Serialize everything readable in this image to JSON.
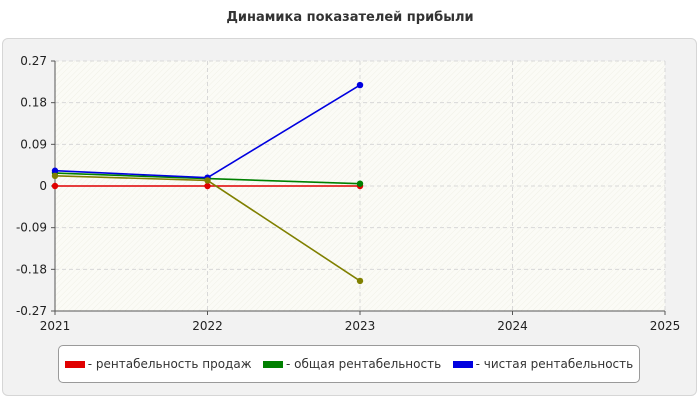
{
  "chart_data": {
    "type": "line",
    "title": "Динамика показателей прибыли",
    "x_ticks": [
      "2021",
      "2022",
      "2023",
      "2024",
      "2025"
    ],
    "xlim": [
      2021,
      2025
    ],
    "y_ticks": [
      "0.27",
      "0.18",
      "0.09",
      "0",
      "-0.09",
      "-0.18",
      "-0.27"
    ],
    "ylim": [
      -0.27,
      0.27
    ],
    "grid": true,
    "legend_position": "bottom",
    "series": [
      {
        "name": "- рентабельность продаж",
        "color": "#e00000",
        "x": [
          2021,
          2022,
          2023
        ],
        "y": [
          0.0,
          0.0,
          0.0
        ]
      },
      {
        "name": "- общая рентабельность",
        "color": "#008000",
        "x": [
          2021,
          2022,
          2023
        ],
        "y": [
          0.028,
          0.016,
          0.005
        ]
      },
      {
        "name": "- чистая рентабельность",
        "color": "#0000e0",
        "x": [
          2021,
          2022,
          2023
        ],
        "y": [
          0.033,
          0.018,
          0.218
        ]
      },
      {
        "name": "",
        "color": "#808000",
        "x": [
          2021,
          2022,
          2023
        ],
        "y": [
          0.022,
          0.012,
          -0.205
        ]
      }
    ]
  }
}
